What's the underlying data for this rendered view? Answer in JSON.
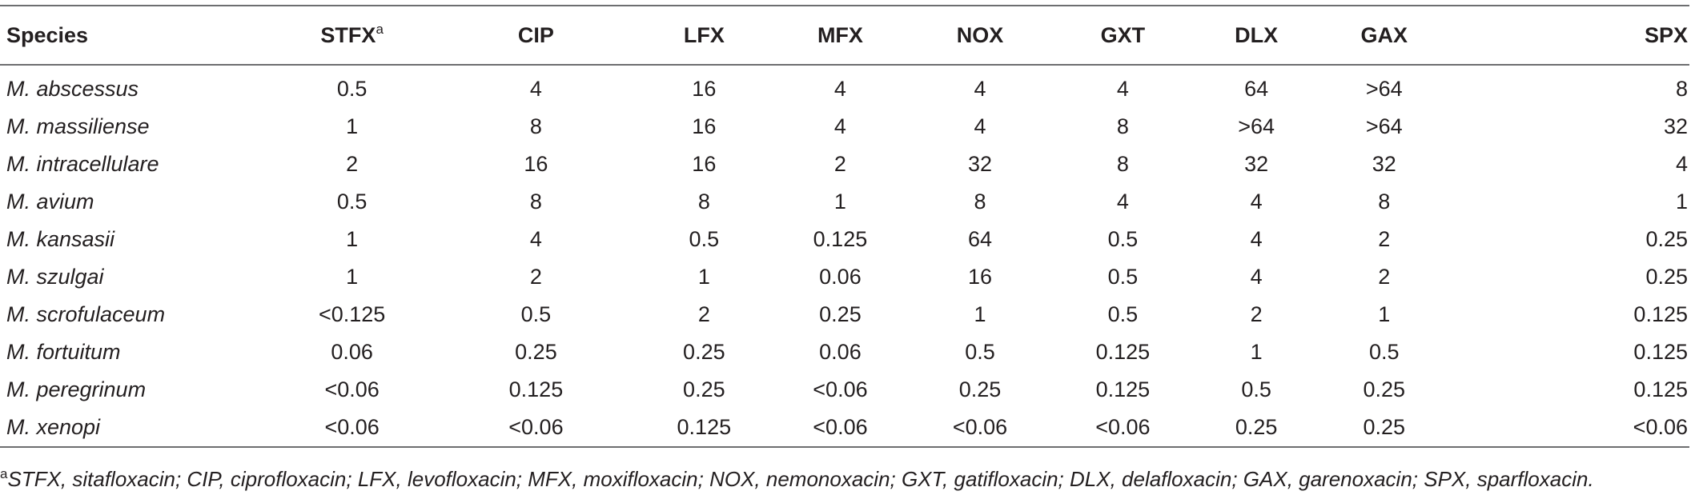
{
  "table": {
    "headers": [
      "Species",
      "STFX",
      "CIP",
      "LFX",
      "MFX",
      "NOX",
      "GXT",
      "DLX",
      "GAX",
      "SPX"
    ],
    "header_superscript": "a",
    "rows": [
      [
        "M. abscessus",
        "0.5",
        "4",
        "16",
        "4",
        "4",
        "4",
        "64",
        ">64",
        "8"
      ],
      [
        "M. massiliense",
        "1",
        "8",
        "16",
        "4",
        "4",
        "8",
        ">64",
        ">64",
        "32"
      ],
      [
        "M. intracellulare",
        "2",
        "16",
        "16",
        "2",
        "32",
        "8",
        "32",
        "32",
        "4"
      ],
      [
        "M. avium",
        "0.5",
        "8",
        "8",
        "1",
        "8",
        "4",
        "4",
        "8",
        "1"
      ],
      [
        "M. kansasii",
        "1",
        "4",
        "0.5",
        "0.125",
        "64",
        "0.5",
        "4",
        "2",
        "0.25"
      ],
      [
        "M. szulgai",
        "1",
        "2",
        "1",
        "0.06",
        "16",
        "0.5",
        "4",
        "2",
        "0.25"
      ],
      [
        "M. scrofulaceum",
        "<0.125",
        "0.5",
        "2",
        "0.25",
        "1",
        "0.5",
        "2",
        "1",
        "0.125"
      ],
      [
        "M. fortuitum",
        "0.06",
        "0.25",
        "0.25",
        "0.06",
        "0.5",
        "0.125",
        "1",
        "0.5",
        "0.125"
      ],
      [
        "M. peregrinum",
        "<0.06",
        "0.125",
        "0.25",
        "<0.06",
        "0.25",
        "0.125",
        "0.5",
        "0.25",
        "0.125"
      ],
      [
        "M. xenopi",
        "<0.06",
        "<0.06",
        "0.125",
        "<0.06",
        "<0.06",
        "<0.06",
        "0.25",
        "0.25",
        "<0.06"
      ]
    ]
  },
  "footnote": {
    "marker": "a",
    "text": "STFX, sitafloxacin; CIP, ciprofloxacin; LFX, levofloxacin; MFX, moxifloxacin; NOX, nemonoxacin; GXT, gatifloxacin; DLX, delafloxacin; GAX, garenoxacin; SPX, sparfloxacin."
  }
}
